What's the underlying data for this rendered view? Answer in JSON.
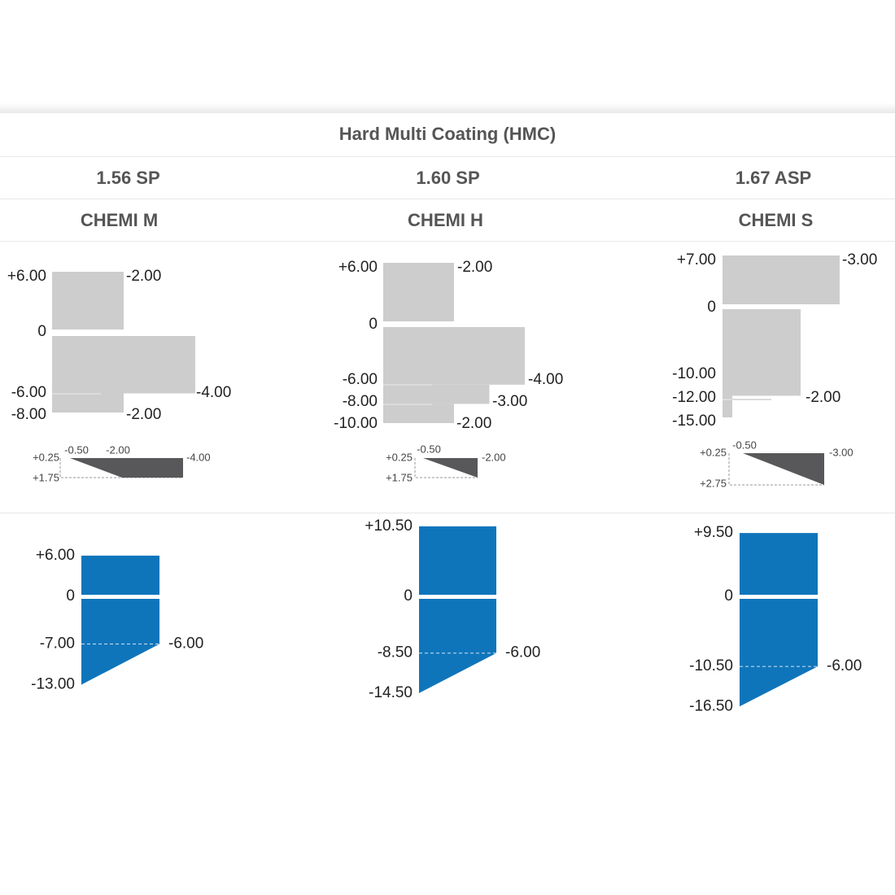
{
  "header": {
    "title": "Hard Multi Coating (HMC)"
  },
  "colors": {
    "grey_block": "#cdcdcd",
    "dark_triangle": "#58585a",
    "blue_block": "#0f75bb",
    "separator": "#ffffff"
  },
  "products": [
    {
      "index": "1.56 SP",
      "name": "CHEMI M"
    },
    {
      "index": "1.60 SP",
      "name": "CHEMI H"
    },
    {
      "index": "1.67 ASP",
      "name": "CHEMI S"
    }
  ],
  "chart_data": [
    {
      "type": "area",
      "product": "CHEMI M",
      "stock_range": {
        "sph_labels": [
          "+6.00",
          "0",
          "-6.00",
          "-8.00"
        ],
        "cyl_labels": [
          "-2.00",
          "-4.00",
          "-2.00"
        ],
        "blocks": [
          {
            "sph_from": 6.0,
            "sph_to": 0,
            "cyl_to": -2.0
          },
          {
            "sph_from": 0,
            "sph_to": -6.0,
            "cyl_to": -4.0
          },
          {
            "sph_from": -6.0,
            "sph_to": -8.0,
            "cyl_to": -2.0
          }
        ]
      },
      "add_range": {
        "labels": [
          "+0.25",
          "+1.75",
          "-0.50",
          "-2.00",
          "-4.00"
        ],
        "sph_top": -0.5,
        "sph_end": -4.0,
        "full_from": -2.0
      },
      "rx_range": {
        "sph_labels": [
          "+6.00",
          "0",
          "-7.00",
          "-13.00"
        ],
        "cyl_label": "-6.00",
        "sph_max": 6.0,
        "sph_at_max_cyl": -7.0,
        "sph_min": -13.0,
        "cyl_max": -6.0
      }
    },
    {
      "type": "area",
      "product": "CHEMI H",
      "stock_range": {
        "sph_labels": [
          "+6.00",
          "0",
          "-6.00",
          "-8.00",
          "-10.00"
        ],
        "cyl_labels": [
          "-2.00",
          "-4.00",
          "-3.00",
          "-2.00"
        ],
        "blocks": [
          {
            "sph_from": 6.0,
            "sph_to": 0,
            "cyl_to": -2.0
          },
          {
            "sph_from": 0,
            "sph_to": -6.0,
            "cyl_to": -4.0
          },
          {
            "sph_from": -6.0,
            "sph_to": -8.0,
            "cyl_to": -3.0
          },
          {
            "sph_from": -8.0,
            "sph_to": -10.0,
            "cyl_to": -2.0
          }
        ]
      },
      "add_range": {
        "labels": [
          "+0.25",
          "+1.75",
          "-0.50",
          "-2.00"
        ],
        "sph_top": -0.5,
        "sph_end": -2.0
      },
      "rx_range": {
        "sph_labels": [
          "+10.50",
          "0",
          "-8.50",
          "-14.50"
        ],
        "cyl_label": "-6.00",
        "sph_max": 10.5,
        "sph_at_max_cyl": -8.5,
        "sph_min": -14.5,
        "cyl_max": -6.0
      }
    },
    {
      "type": "area",
      "product": "CHEMI S",
      "stock_range": {
        "sph_labels": [
          "+7.00",
          "0",
          "-10.00",
          "-12.00",
          "-15.00"
        ],
        "cyl_labels": [
          "-3.00",
          "-2.00"
        ],
        "blocks": [
          {
            "sph_from": 7.0,
            "sph_to": 0,
            "cyl_to": -3.0
          },
          {
            "sph_from": 0,
            "sph_to": -12.0,
            "cyl_to": -2.0
          },
          {
            "sph_from": -12.0,
            "sph_to": -15.0,
            "cyl_to": -0.25
          }
        ]
      },
      "add_range": {
        "labels": [
          "+0.25",
          "+2.75",
          "-0.50",
          "-3.00"
        ],
        "sph_top": -0.5,
        "sph_end": -3.0
      },
      "rx_range": {
        "sph_labels": [
          "+9.50",
          "0",
          "-10.50",
          "-16.50"
        ],
        "cyl_label": "-6.00",
        "sph_max": 9.5,
        "sph_at_max_cyl": -10.5,
        "sph_min": -16.5,
        "cyl_max": -6.0
      }
    }
  ]
}
